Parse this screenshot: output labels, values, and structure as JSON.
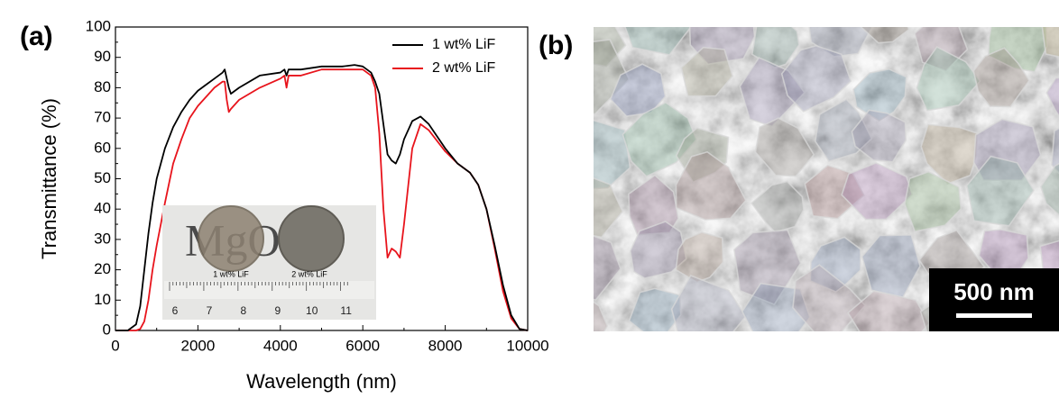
{
  "chart_data": {
    "type": "line",
    "xlabel": "Wavelength (nm)",
    "ylabel": "Transmittance (%)",
    "xlim": [
      0,
      10000
    ],
    "ylim": [
      0,
      100
    ],
    "xticks": [
      0,
      2000,
      4000,
      6000,
      8000,
      10000
    ],
    "yticks": [
      0,
      10,
      20,
      30,
      40,
      50,
      60,
      70,
      80,
      90,
      100
    ],
    "legend": "upper right",
    "x": [
      0,
      300,
      500,
      600,
      700,
      800,
      900,
      1000,
      1200,
      1400,
      1600,
      1800,
      2000,
      2200,
      2400,
      2600,
      2650,
      2700,
      2750,
      2800,
      3000,
      3500,
      4000,
      4100,
      4150,
      4200,
      4500,
      5000,
      5500,
      5800,
      6000,
      6200,
      6300,
      6400,
      6500,
      6600,
      6700,
      6800,
      6900,
      7000,
      7200,
      7400,
      7600,
      8000,
      8300,
      8600,
      8800,
      9000,
      9200,
      9400,
      9600,
      9800,
      10000
    ],
    "series": [
      {
        "name": "1 wt% LiF",
        "color": "#000000",
        "values": [
          0,
          0,
          2,
          8,
          20,
          32,
          42,
          50,
          60,
          67,
          72,
          76,
          79,
          81,
          83,
          85,
          86,
          83,
          80,
          78,
          80,
          84,
          85,
          86,
          84,
          86,
          86,
          87,
          87,
          87.5,
          87,
          85,
          82,
          78,
          68,
          58,
          56,
          55,
          58,
          63,
          69,
          70.5,
          68,
          60,
          55,
          52,
          48,
          40,
          28,
          15,
          5,
          0.5,
          0
        ]
      },
      {
        "name": "2 wt% LiF",
        "color": "#e8141c",
        "values": [
          0,
          0,
          0,
          0.5,
          3,
          10,
          20,
          28,
          42,
          55,
          63,
          70,
          74,
          77,
          80,
          82,
          82,
          76,
          72,
          73,
          76,
          80,
          83,
          84,
          80,
          84,
          84,
          86,
          86,
          86,
          86,
          84,
          80,
          65,
          40,
          24,
          27,
          26,
          24,
          35,
          60,
          68,
          66,
          59,
          55,
          52,
          48,
          40,
          27,
          13,
          4,
          0.5,
          0
        ]
      }
    ]
  },
  "panel_labels": [
    "(a)",
    "(b)"
  ],
  "inset": {
    "background_text": "MgO",
    "sample_labels": [
      "1 wt% LiF",
      "2 wt% LiF"
    ],
    "ruler_labels": [
      6,
      7,
      8,
      9,
      10,
      11
    ]
  },
  "sem": {
    "scale_bar": "500 nm"
  }
}
